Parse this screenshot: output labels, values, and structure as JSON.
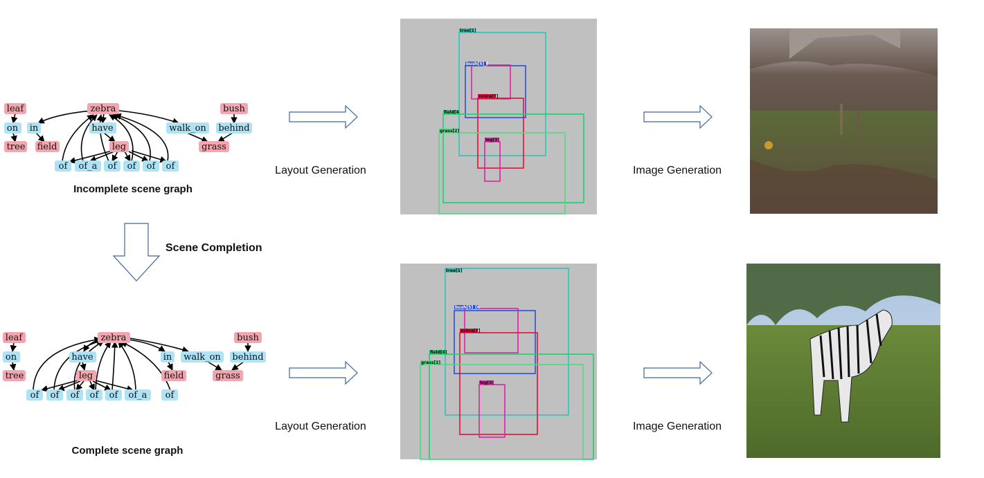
{
  "colors": {
    "object_node": "#f4a6b0",
    "relation_node": "#aee3f5",
    "layout_bg": "#c0c0c0",
    "tree_box": "#2ec4b6",
    "bush_box": "#2a4fd6",
    "zebra_box": "#e0103c",
    "leg_box": "#e0209e",
    "field_box": "#17d36b",
    "grass_box": "#4ade80"
  },
  "top": {
    "caption": "Incomplete scene graph",
    "nodes": {
      "leaf": "leaf",
      "on": "on",
      "tree": "tree",
      "in": "in",
      "field": "field",
      "zebra": "zebra",
      "have": "have",
      "leg": "leg",
      "of1": "of",
      "of_a": "of_a",
      "of2": "of",
      "of3": "of",
      "of4": "of",
      "of5": "of",
      "walk_on": "walk_on",
      "bush": "bush",
      "behind": "behind",
      "grass": "grass"
    },
    "layout_label": "Layout Generation",
    "image_label": "Image Generation",
    "boxes": {
      "tree": "tree[1]",
      "bush": "bush[5]_[",
      "zebra": "zebra[7]",
      "field": "field[4",
      "grass": "grass[2]",
      "leg": "leg[3]"
    }
  },
  "middle": {
    "label": "Scene Completion"
  },
  "bottom": {
    "caption": "Complete scene graph",
    "nodes": {
      "leaf": "leaf",
      "on": "on",
      "tree": "tree",
      "zebra": "zebra",
      "have": "have",
      "leg": "leg",
      "of1": "of",
      "of2": "of",
      "of3": "of",
      "of4": "of",
      "of5": "of",
      "of_a": "of_a",
      "in": "in",
      "field": "field",
      "of6": "of",
      "walk_on": "walk_on",
      "bush": "bush",
      "behind": "behind",
      "grass": "grass"
    },
    "layout_label": "Layout Generation",
    "image_label": "Image Generation",
    "boxes": {
      "tree": "tree[1]",
      "bush": "bush[5]_[6",
      "zebra": "zebra[7]",
      "field": "field[4]",
      "grass": "grass[2]",
      "leg": "leg[3]"
    }
  }
}
